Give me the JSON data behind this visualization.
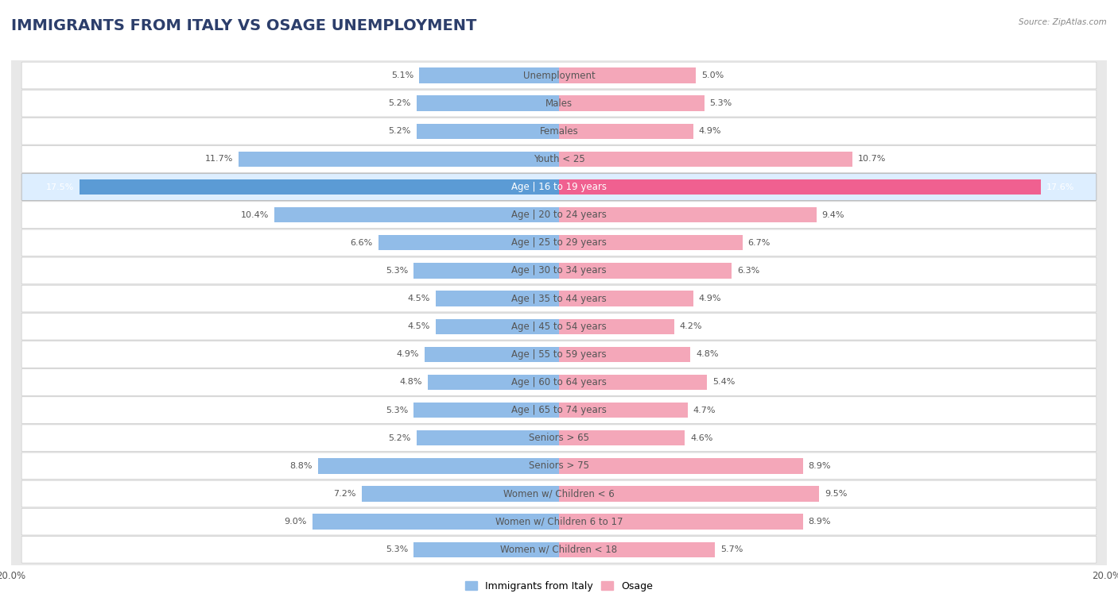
{
  "title": "IMMIGRANTS FROM ITALY VS OSAGE UNEMPLOYMENT",
  "source": "Source: ZipAtlas.com",
  "categories": [
    "Unemployment",
    "Males",
    "Females",
    "Youth < 25",
    "Age | 16 to 19 years",
    "Age | 20 to 24 years",
    "Age | 25 to 29 years",
    "Age | 30 to 34 years",
    "Age | 35 to 44 years",
    "Age | 45 to 54 years",
    "Age | 55 to 59 years",
    "Age | 60 to 64 years",
    "Age | 65 to 74 years",
    "Seniors > 65",
    "Seniors > 75",
    "Women w/ Children < 6",
    "Women w/ Children 6 to 17",
    "Women w/ Children < 18"
  ],
  "italy_values": [
    5.1,
    5.2,
    5.2,
    11.7,
    17.5,
    10.4,
    6.6,
    5.3,
    4.5,
    4.5,
    4.9,
    4.8,
    5.3,
    5.2,
    8.8,
    7.2,
    9.0,
    5.3
  ],
  "osage_values": [
    5.0,
    5.3,
    4.9,
    10.7,
    17.6,
    9.4,
    6.7,
    6.3,
    4.9,
    4.2,
    4.8,
    5.4,
    4.7,
    4.6,
    8.9,
    9.5,
    8.9,
    5.7
  ],
  "italy_color": "#91BCE8",
  "osage_color": "#F4A7B9",
  "italy_highlight": "#5B9BD5",
  "osage_highlight": "#F06090",
  "italy_label": "Immigrants from Italy",
  "osage_label": "Osage",
  "highlight_row": 4,
  "xlim": 20.0,
  "bar_height": 0.55,
  "bg_color": "#E8E8E8",
  "row_bg_color": "#FFFFFF",
  "row_border_color": "#CCCCCC",
  "highlight_italy_bg": "#5B9BD5",
  "highlight_osage_bg": "#F06090",
  "title_fontsize": 14,
  "label_fontsize": 8.5,
  "value_fontsize": 8,
  "axis_fontsize": 8.5
}
